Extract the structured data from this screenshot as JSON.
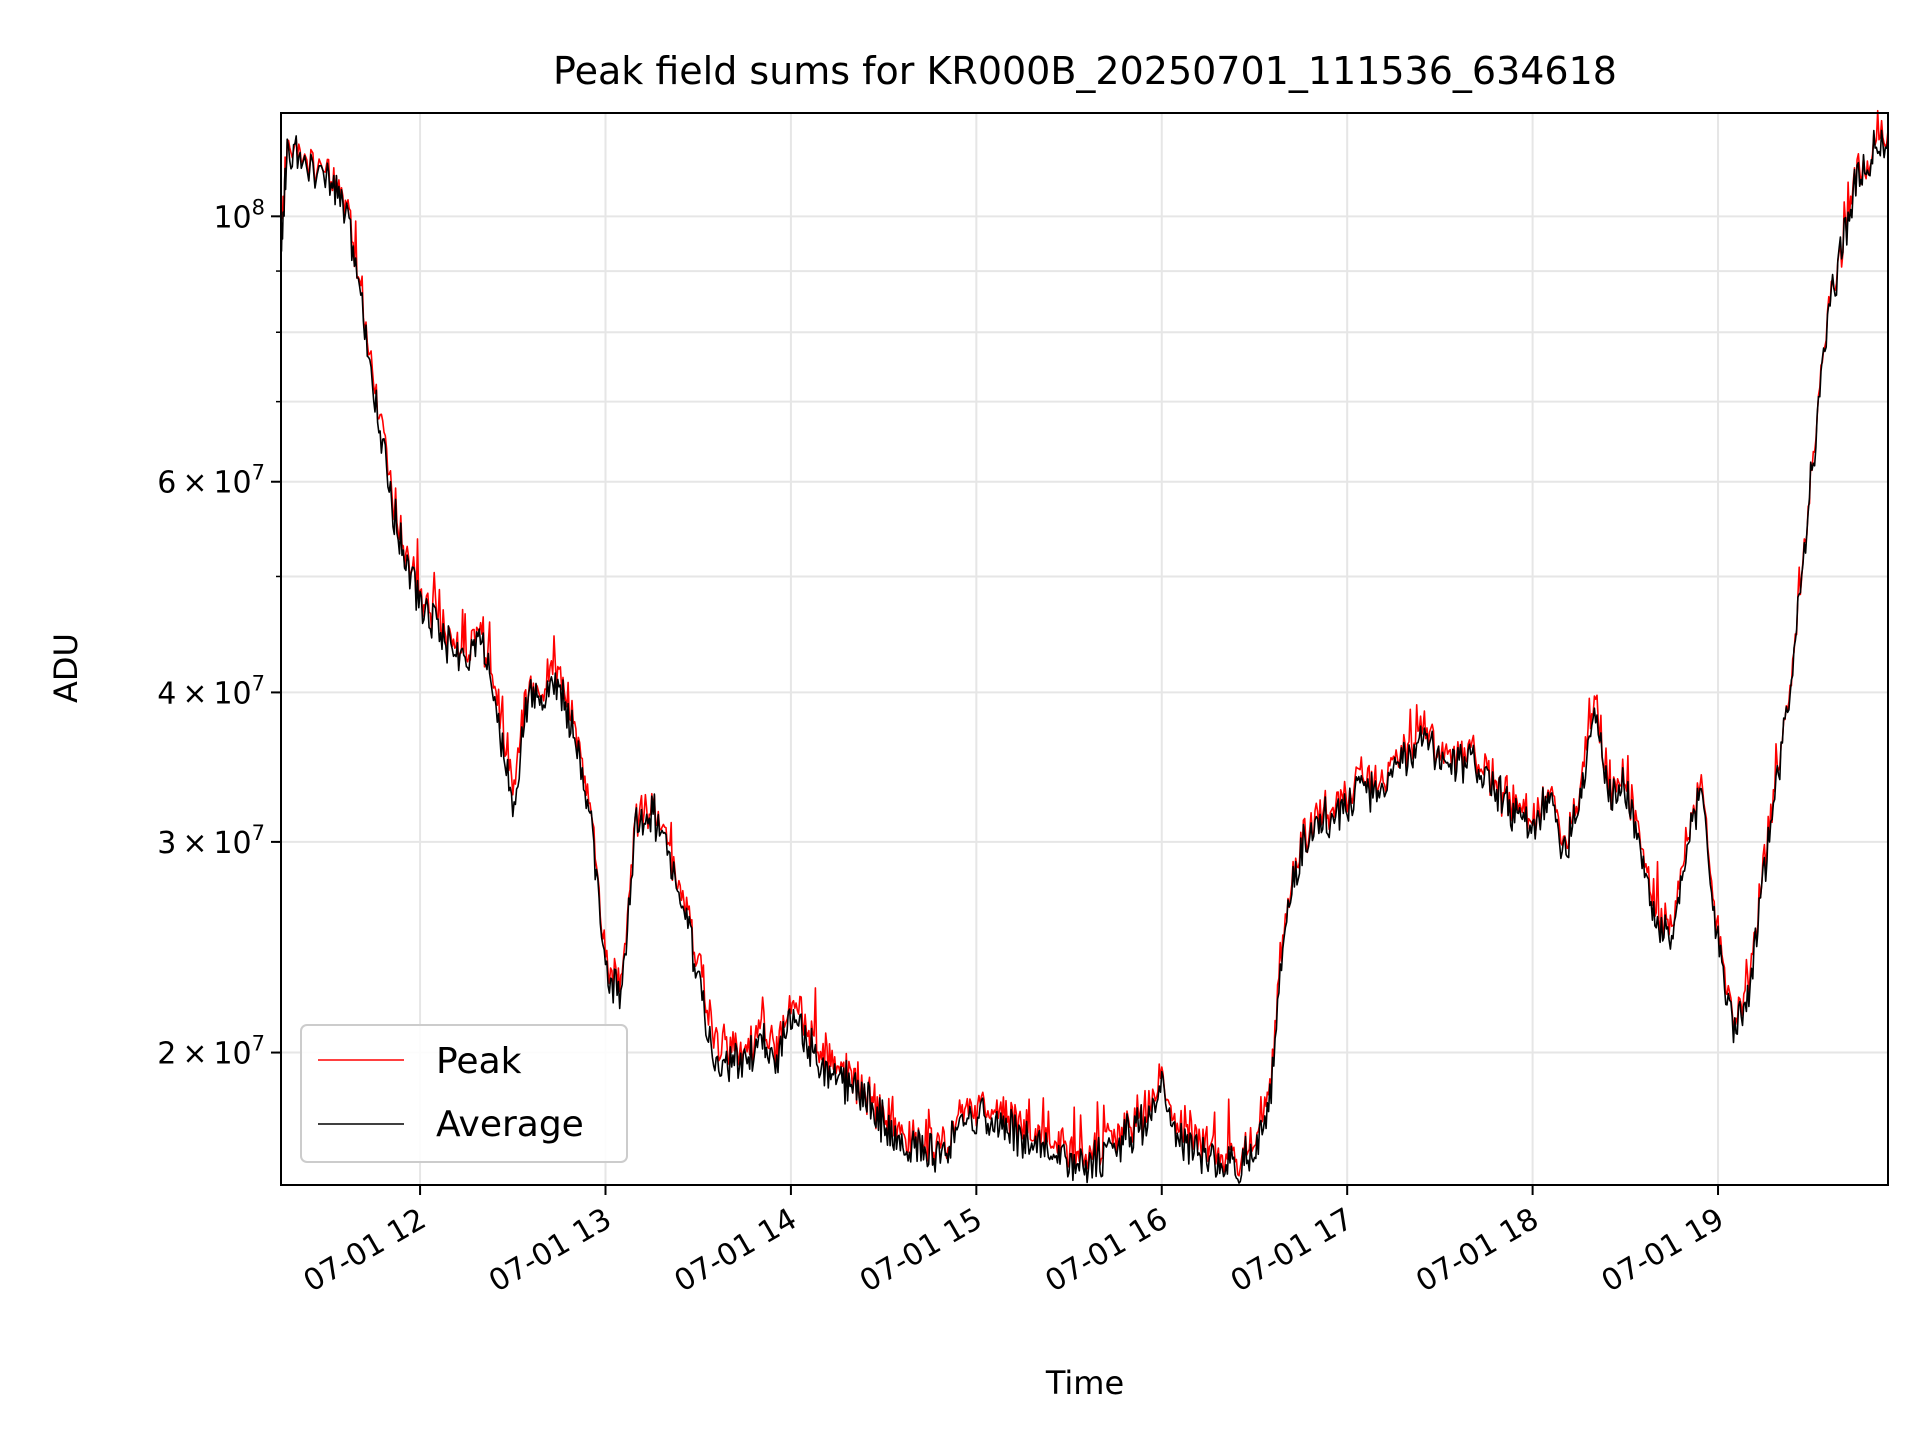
{
  "chart_data": {
    "type": "line",
    "title": "Peak field sums for KR000B_20250701_111536_634618",
    "xlabel": "Time",
    "ylabel": "ADU",
    "yscale": "log",
    "xlim": [
      "07-01 11:15",
      "07-01 19:55"
    ],
    "ylim": [
      15500000,
      122000000
    ],
    "x_ticks": [
      "07-01 12",
      "07-01 13",
      "07-01 14",
      "07-01 15",
      "07-01 16",
      "07-01 17",
      "07-01 18",
      "07-01 19"
    ],
    "y_ticks": [
      {
        "value": 20000000,
        "label": "2 × 10^7"
      },
      {
        "value": 30000000,
        "label": "3 × 10^7"
      },
      {
        "value": 40000000,
        "label": "4 × 10^7"
      },
      {
        "value": 60000000,
        "label": "6 × 10^7"
      },
      {
        "value": 100000000,
        "label": "10^8"
      }
    ],
    "grid": true,
    "legend_position": "lower-left",
    "x_times": [
      "11:15",
      "11:17",
      "11:22",
      "11:30",
      "11:35",
      "11:40",
      "11:45",
      "11:50",
      "11:55",
      "12:00",
      "12:05",
      "12:10",
      "12:15",
      "12:20",
      "12:25",
      "12:30",
      "12:35",
      "12:40",
      "12:45",
      "12:50",
      "12:55",
      "13:00",
      "13:05",
      "13:10",
      "13:15",
      "13:20",
      "13:25",
      "13:30",
      "13:35",
      "13:40",
      "13:45",
      "13:50",
      "13:55",
      "14:00",
      "14:05",
      "14:10",
      "14:15",
      "14:20",
      "14:25",
      "14:30",
      "14:35",
      "14:40",
      "14:45",
      "14:50",
      "14:55",
      "15:00",
      "15:05",
      "15:10",
      "15:15",
      "15:20",
      "15:25",
      "15:30",
      "15:35",
      "15:40",
      "15:45",
      "15:50",
      "15:55",
      "16:00",
      "16:05",
      "16:10",
      "16:15",
      "16:20",
      "16:25",
      "16:30",
      "16:35",
      "16:40",
      "16:45",
      "16:50",
      "16:55",
      "17:00",
      "17:05",
      "17:10",
      "17:15",
      "17:20",
      "17:25",
      "17:30",
      "17:35",
      "17:40",
      "17:45",
      "17:50",
      "17:55",
      "18:00",
      "18:05",
      "18:10",
      "18:15",
      "18:20",
      "18:25",
      "18:30",
      "18:35",
      "18:40",
      "18:45",
      "18:50",
      "18:55",
      "19:00",
      "19:05",
      "19:10",
      "19:15",
      "19:20",
      "19:25",
      "19:30",
      "19:35",
      "19:40",
      "19:45",
      "19:50",
      "19:55"
    ],
    "series": [
      {
        "name": "Peak",
        "color": "#ff0000",
        "values": [
          95000000,
          114000000,
          112000000,
          108000000,
          104000000,
          90000000,
          74000000,
          61000000,
          53000000,
          48000000,
          46500000,
          44000000,
          43500000,
          45000000,
          39000000,
          34000000,
          40000000,
          40500000,
          42000000,
          37500000,
          32000000,
          24000000,
          22500000,
          31500000,
          32500000,
          30000000,
          27000000,
          24000000,
          20500000,
          20000000,
          20200000,
          21000000,
          20000000,
          22000000,
          21000000,
          19800000,
          19200000,
          19000000,
          18400000,
          17700000,
          17200000,
          16800000,
          16700000,
          16900000,
          17500000,
          17900000,
          18200000,
          17600000,
          17300000,
          17100000,
          16800000,
          16500000,
          16300000,
          16600000,
          17000000,
          17500000,
          17700000,
          19000000,
          17500000,
          17000000,
          16500000,
          16400000,
          16300000,
          17200000,
          18500000,
          26500000,
          30000000,
          31500000,
          32000000,
          33000000,
          34000000,
          33500000,
          34500000,
          36000000,
          37000000,
          35500000,
          35000000,
          35500000,
          34500000,
          33000000,
          32000000,
          31000000,
          33500000,
          30000000,
          33000000,
          40000000,
          33000000,
          34000000,
          30000000,
          26000000,
          25000000,
          30000000,
          34000000,
          25000000,
          21500000,
          23000000,
          29000000,
          35000000,
          45000000,
          60000000,
          80000000,
          95000000,
          108000000,
          114000000,
          118000000
        ]
      },
      {
        "name": "Average",
        "color": "#000000",
        "values": [
          93000000,
          113000000,
          111000000,
          107000000,
          103000000,
          89000000,
          73000000,
          59500000,
          52000000,
          47500000,
          46000000,
          43500000,
          43000000,
          44500000,
          38000000,
          32500000,
          39500000,
          40000000,
          41000000,
          36500000,
          31500000,
          23500000,
          22000000,
          31000000,
          32000000,
          29500000,
          26500000,
          23000000,
          19500000,
          19500000,
          19700000,
          20500000,
          19500000,
          21500000,
          20500000,
          19300000,
          18900000,
          18700000,
          18100000,
          17400000,
          16900000,
          16600000,
          16500000,
          16700000,
          17200000,
          17500000,
          17800000,
          17300000,
          17000000,
          16800000,
          16500000,
          16200000,
          16000000,
          16300000,
          16700000,
          17200000,
          17400000,
          18700000,
          17200000,
          16600000,
          16200000,
          16000000,
          16000000,
          16800000,
          18000000,
          26000000,
          29500000,
          31000000,
          31500000,
          32500000,
          33500000,
          33000000,
          34000000,
          35500000,
          36500000,
          35000000,
          34500000,
          35000000,
          34000000,
          32500000,
          31500000,
          30500000,
          33000000,
          29500000,
          32500000,
          39000000,
          32500000,
          33500000,
          29500000,
          25500000,
          24500000,
          29500000,
          33500000,
          24500000,
          21200000,
          22500000,
          28500000,
          34500000,
          44500000,
          59500000,
          79500000,
          94500000,
          107000000,
          113000000,
          116000000
        ]
      }
    ]
  }
}
